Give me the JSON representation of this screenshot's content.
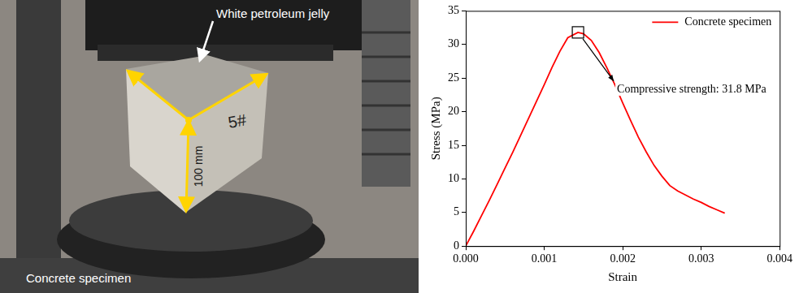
{
  "photo": {
    "annotation": "White petroleum jelly",
    "dimension": "100 mm",
    "marking": "5#",
    "caption": "Concrete specimen"
  },
  "chart_data": {
    "type": "line",
    "x_label": "Strain",
    "y_label": "Stress (MPa)",
    "x": [
      0,
      0.0001,
      0.0002,
      0.0003,
      0.0004,
      0.0005,
      0.0006,
      0.0007,
      0.0008,
      0.0009,
      0.001,
      0.0011,
      0.0012,
      0.0013,
      0.00143,
      0.0015,
      0.0016,
      0.0017,
      0.0018,
      0.0019,
      0.002,
      0.0021,
      0.0022,
      0.0023,
      0.0024,
      0.0025,
      0.0026,
      0.0027,
      0.0028,
      0.0029,
      0.003,
      0.0031,
      0.0032,
      0.0033
    ],
    "series": [
      {
        "name": "Concrete specimen",
        "color": "#ff0000",
        "values": [
          0,
          2.2,
          4.5,
          6.8,
          9.2,
          11.6,
          14,
          16.5,
          19,
          21.5,
          24,
          26.6,
          29,
          31,
          31.8,
          31.6,
          30.6,
          28.8,
          26.5,
          24,
          21.3,
          18.7,
          16.2,
          14,
          12,
          10.4,
          9,
          8.2,
          7.6,
          7,
          6.5,
          5.9,
          5.4,
          4.9
        ]
      }
    ],
    "xlim": [
      0,
      0.004
    ],
    "xticks": [
      {
        "value": 0,
        "label": "0.000"
      },
      {
        "value": 0.001,
        "label": "0.001"
      },
      {
        "value": 0.002,
        "label": "0.002"
      },
      {
        "value": 0.003,
        "label": "0.003"
      },
      {
        "value": 0.004,
        "label": "0.004"
      }
    ],
    "ylim": [
      0,
      35
    ],
    "yticks": [
      0,
      5,
      10,
      15,
      20,
      25,
      30,
      35
    ],
    "grid": false,
    "legend": "upper right",
    "annotations": [
      {
        "text": "Compressive strength: 31.8 MPa",
        "x": 0.00143,
        "y": 31.8
      }
    ]
  }
}
